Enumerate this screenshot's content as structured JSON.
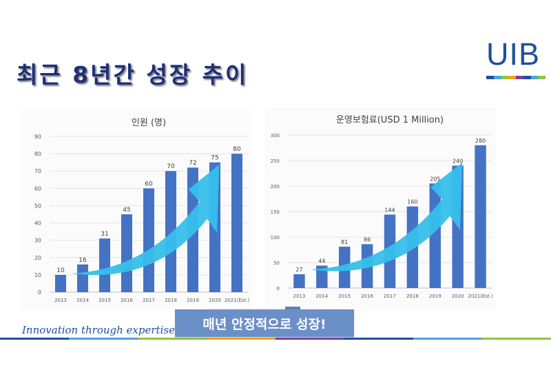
{
  "slide": {
    "title": "최근 8년간 성장 추이",
    "logo_text": "UIB",
    "slogan": "Innovation through expertise",
    "callout": "매년 안정적으로 성장!"
  },
  "colors": {
    "bar": "#4472c4",
    "arrow": "#36bfec",
    "title": "#1d2e78",
    "logo": "#1f4f9c",
    "stripe": [
      "#1f4f9c",
      "#47a6de",
      "#8dc63f",
      "#f7a21b",
      "#7b3f98",
      "#1f4f9c",
      "#47a6de",
      "#8dc63f"
    ]
  },
  "chart_data": [
    {
      "type": "bar",
      "title": "인원 (명)",
      "categories": [
        "2013",
        "2014",
        "2015",
        "2016",
        "2017",
        "2018",
        "2019",
        "2020",
        "2021(Est.)"
      ],
      "values": [
        10,
        16,
        31,
        45,
        60,
        70,
        72,
        75,
        80
      ],
      "ylim": [
        0,
        90
      ],
      "yticks": [
        0,
        10,
        20,
        30,
        40,
        50,
        60,
        70,
        80,
        90
      ],
      "grid": true,
      "annotation": "upward-arrow"
    },
    {
      "type": "bar",
      "title": "운영보험료(USD 1 Million)",
      "categories": [
        "2013",
        "2014",
        "2015",
        "2016",
        "2017",
        "2018",
        "2019",
        "2020",
        "2021(Est.)"
      ],
      "values": [
        27,
        44,
        81,
        86,
        144,
        160,
        205,
        240,
        280
      ],
      "ylim": [
        0,
        300
      ],
      "yticks": [
        0,
        50,
        100,
        150,
        200,
        250,
        300
      ],
      "grid": true,
      "annotation": "upward-arrow"
    }
  ]
}
